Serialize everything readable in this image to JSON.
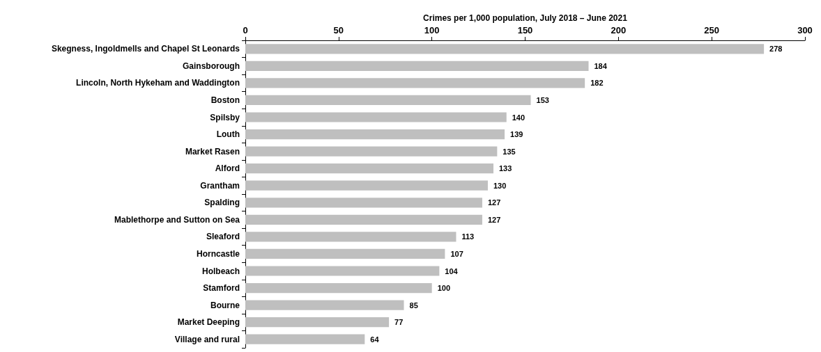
{
  "chart_data": {
    "type": "bar",
    "orientation": "horizontal",
    "xlabel": "Crimes per 1,000 population, July 2018 – June 2021",
    "categories": [
      "Skegness, Ingoldmells and Chapel St Leonards",
      "Gainsborough",
      "Lincoln, North Hykeham and Waddington",
      "Boston",
      "Spilsby",
      "Louth",
      "Market Rasen",
      "Alford",
      "Grantham",
      "Spalding",
      "Mablethorpe and Sutton on Sea",
      "Sleaford",
      "Horncastle",
      "Holbeach",
      "Stamford",
      "Bourne",
      "Market Deeping",
      "Village and rural"
    ],
    "values": [
      278,
      184,
      182,
      153,
      140,
      139,
      135,
      133,
      130,
      127,
      127,
      113,
      107,
      104,
      100,
      85,
      77,
      64
    ],
    "color": "#bfbfbf",
    "xlim": [
      0,
      300
    ],
    "xticks": [
      0,
      50,
      100,
      150,
      200,
      250,
      300
    ],
    "data_labels": true
  }
}
